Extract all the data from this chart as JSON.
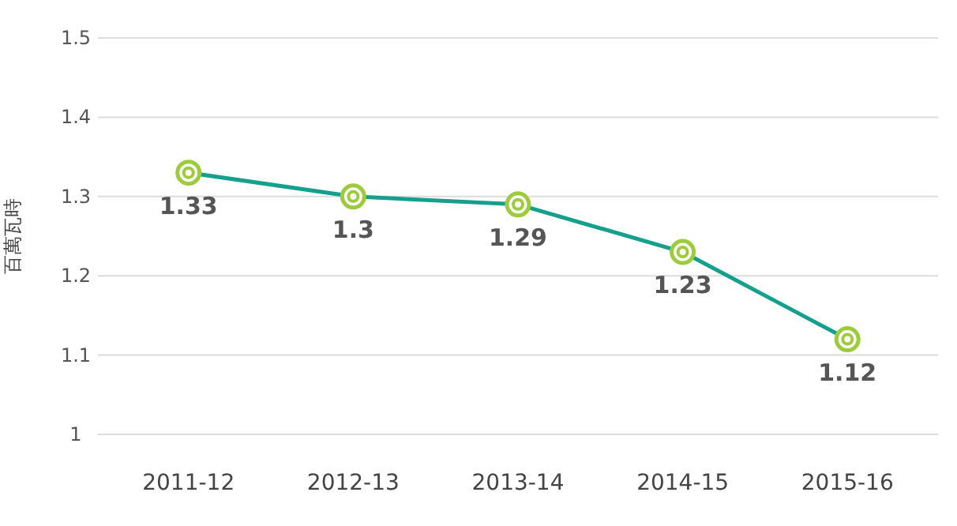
{
  "chart_data": {
    "type": "line",
    "ylabel": "百萬瓦時",
    "categories": [
      "2011-12",
      "2012-13",
      "2013-14",
      "2014-15",
      "2015-16"
    ],
    "series": [
      {
        "color": "#14a08c",
        "values": [
          1.33,
          1.3,
          1.29,
          1.23,
          1.12
        ]
      }
    ],
    "ylim": [
      1,
      1.5
    ],
    "yticks": [
      1,
      1.1,
      1.2,
      1.3,
      1.4,
      1.5
    ],
    "grid": "y",
    "marker": "circle",
    "line_style": "solid",
    "data_labels": true
  }
}
